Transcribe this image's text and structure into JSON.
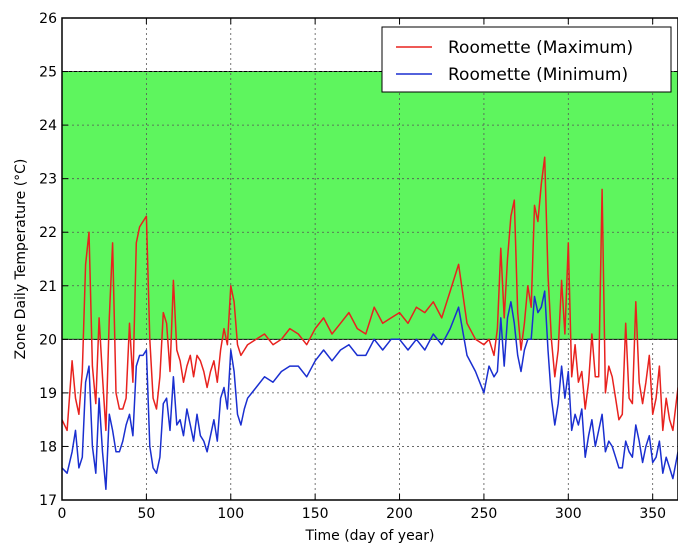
{
  "chart_data": {
    "type": "line",
    "xlabel": "Time (day of year)",
    "ylabel": "Zone Daily Temperature (°C)",
    "xlim": [
      0,
      365
    ],
    "ylim": [
      17,
      26
    ],
    "xticks": [
      0,
      50,
      100,
      150,
      200,
      250,
      300,
      350
    ],
    "yticks": [
      17,
      18,
      19,
      20,
      21,
      22,
      23,
      24,
      25,
      26
    ],
    "grid": true,
    "legend_position": "top-right",
    "comfort_band": {
      "low": 20,
      "high": 25,
      "color": "#5ef55e"
    },
    "series": [
      {
        "name": "Roomette (Maximum)",
        "color": "#e8221e",
        "x": [
          0,
          3,
          6,
          8,
          10,
          12,
          14,
          16,
          18,
          20,
          22,
          24,
          26,
          28,
          30,
          32,
          34,
          36,
          38,
          40,
          42,
          44,
          46,
          48,
          50,
          52,
          54,
          56,
          58,
          60,
          62,
          64,
          66,
          68,
          70,
          72,
          74,
          76,
          78,
          80,
          82,
          84,
          86,
          88,
          90,
          92,
          94,
          96,
          98,
          100,
          102,
          104,
          106,
          108,
          110,
          115,
          120,
          125,
          130,
          135,
          140,
          145,
          150,
          155,
          160,
          165,
          170,
          175,
          180,
          185,
          190,
          195,
          200,
          205,
          210,
          215,
          220,
          225,
          230,
          235,
          240,
          245,
          250,
          253,
          256,
          258,
          260,
          262,
          264,
          266,
          268,
          270,
          272,
          274,
          276,
          278,
          280,
          282,
          284,
          286,
          288,
          290,
          292,
          294,
          296,
          298,
          300,
          302,
          304,
          306,
          308,
          310,
          312,
          314,
          316,
          318,
          320,
          322,
          324,
          326,
          328,
          330,
          332,
          334,
          336,
          338,
          340,
          342,
          344,
          346,
          348,
          350,
          352,
          354,
          356,
          358,
          360,
          362,
          365
        ],
        "y": [
          18.5,
          18.3,
          19.6,
          18.9,
          18.6,
          19.4,
          21.4,
          22.0,
          19.5,
          18.8,
          20.4,
          19.3,
          18.3,
          20.4,
          21.8,
          19.0,
          18.7,
          18.7,
          18.9,
          20.3,
          19.2,
          21.8,
          22.1,
          22.2,
          22.3,
          20.0,
          18.9,
          18.7,
          19.3,
          20.5,
          20.3,
          19.4,
          21.1,
          19.8,
          19.6,
          19.2,
          19.5,
          19.7,
          19.3,
          19.7,
          19.6,
          19.4,
          19.1,
          19.4,
          19.6,
          19.2,
          19.8,
          20.2,
          19.9,
          21.0,
          20.7,
          19.9,
          19.7,
          19.8,
          19.9,
          20.0,
          20.1,
          19.9,
          20.0,
          20.2,
          20.1,
          19.9,
          20.2,
          20.4,
          20.1,
          20.3,
          20.5,
          20.2,
          20.1,
          20.6,
          20.3,
          20.4,
          20.5,
          20.3,
          20.6,
          20.5,
          20.7,
          20.4,
          20.9,
          21.4,
          20.3,
          20.0,
          19.9,
          20.0,
          19.7,
          20.2,
          21.7,
          20.4,
          21.5,
          22.3,
          22.6,
          20.5,
          19.8,
          20.3,
          21.0,
          20.6,
          22.5,
          22.2,
          22.9,
          23.4,
          21.2,
          20.0,
          19.3,
          19.8,
          21.1,
          20.1,
          21.8,
          19.3,
          19.9,
          19.2,
          19.4,
          18.7,
          19.2,
          20.1,
          19.3,
          19.3,
          22.8,
          19.0,
          19.5,
          19.3,
          18.9,
          18.5,
          18.6,
          20.3,
          18.9,
          18.8,
          20.7,
          19.2,
          18.8,
          19.2,
          19.7,
          18.6,
          18.9,
          19.5,
          18.3,
          18.9,
          18.5,
          18.3,
          19.1
        ]
      },
      {
        "name": "Roomette (Minimum)",
        "color": "#1a2fd0",
        "x": [
          0,
          3,
          6,
          8,
          10,
          12,
          14,
          16,
          18,
          20,
          22,
          24,
          26,
          28,
          30,
          32,
          34,
          36,
          38,
          40,
          42,
          44,
          46,
          48,
          50,
          52,
          54,
          56,
          58,
          60,
          62,
          64,
          66,
          68,
          70,
          72,
          74,
          76,
          78,
          80,
          82,
          84,
          86,
          88,
          90,
          92,
          94,
          96,
          98,
          100,
          102,
          104,
          106,
          108,
          110,
          115,
          120,
          125,
          130,
          135,
          140,
          145,
          150,
          155,
          160,
          165,
          170,
          175,
          180,
          185,
          190,
          195,
          200,
          205,
          210,
          215,
          220,
          225,
          230,
          235,
          240,
          245,
          250,
          253,
          256,
          258,
          260,
          262,
          264,
          266,
          268,
          270,
          272,
          274,
          276,
          278,
          280,
          282,
          284,
          286,
          288,
          290,
          292,
          294,
          296,
          298,
          300,
          302,
          304,
          306,
          308,
          310,
          312,
          314,
          316,
          318,
          320,
          322,
          324,
          326,
          328,
          330,
          332,
          334,
          336,
          338,
          340,
          342,
          344,
          346,
          348,
          350,
          352,
          354,
          356,
          358,
          360,
          362,
          365
        ],
        "y": [
          17.6,
          17.5,
          17.9,
          18.3,
          17.6,
          17.8,
          19.2,
          19.5,
          18.0,
          17.5,
          18.9,
          17.9,
          17.2,
          18.6,
          18.3,
          17.9,
          17.9,
          18.1,
          18.4,
          18.6,
          18.2,
          19.5,
          19.7,
          19.7,
          19.8,
          18.0,
          17.6,
          17.5,
          17.8,
          18.8,
          18.9,
          18.3,
          19.3,
          18.4,
          18.5,
          18.2,
          18.7,
          18.4,
          18.1,
          18.6,
          18.2,
          18.1,
          17.9,
          18.2,
          18.5,
          18.1,
          18.9,
          19.1,
          18.7,
          19.8,
          19.4,
          18.6,
          18.4,
          18.7,
          18.9,
          19.1,
          19.3,
          19.2,
          19.4,
          19.5,
          19.5,
          19.3,
          19.6,
          19.8,
          19.6,
          19.8,
          19.9,
          19.7,
          19.7,
          20.0,
          19.8,
          20.0,
          20.0,
          19.8,
          20.0,
          19.8,
          20.1,
          19.9,
          20.2,
          20.6,
          19.7,
          19.4,
          19.0,
          19.5,
          19.3,
          19.4,
          20.4,
          19.5,
          20.4,
          20.7,
          20.3,
          19.7,
          19.4,
          19.8,
          20.0,
          20.0,
          20.8,
          20.5,
          20.6,
          20.9,
          19.8,
          18.9,
          18.4,
          18.8,
          19.5,
          18.9,
          19.4,
          18.3,
          18.6,
          18.4,
          18.7,
          17.8,
          18.2,
          18.5,
          18.0,
          18.3,
          18.6,
          17.9,
          18.1,
          18.0,
          17.8,
          17.6,
          17.6,
          18.1,
          17.9,
          17.8,
          18.4,
          18.1,
          17.7,
          18.0,
          18.2,
          17.7,
          17.8,
          18.1,
          17.5,
          17.8,
          17.6,
          17.4,
          17.9
        ]
      }
    ]
  }
}
